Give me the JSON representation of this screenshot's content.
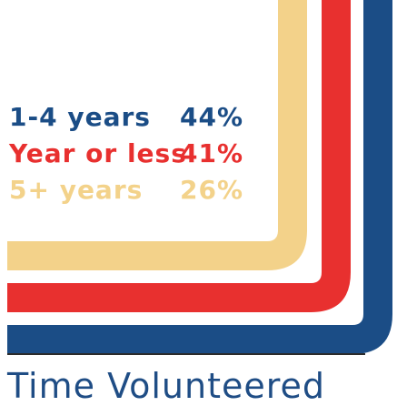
{
  "chart_data": {
    "type": "bar",
    "title": "Time Volunteered",
    "categories": [
      "1-4 years",
      "Year or less",
      "5+ years"
    ],
    "series": [
      {
        "name": "1-4 years",
        "value": 44,
        "label": "44%",
        "color": "#1b4d86"
      },
      {
        "name": "Year or less",
        "value": 41,
        "label": "41%",
        "color": "#e8302f"
      },
      {
        "name": "5+ years",
        "value": 26,
        "label": "26%",
        "color": "#f3d28a"
      }
    ]
  }
}
